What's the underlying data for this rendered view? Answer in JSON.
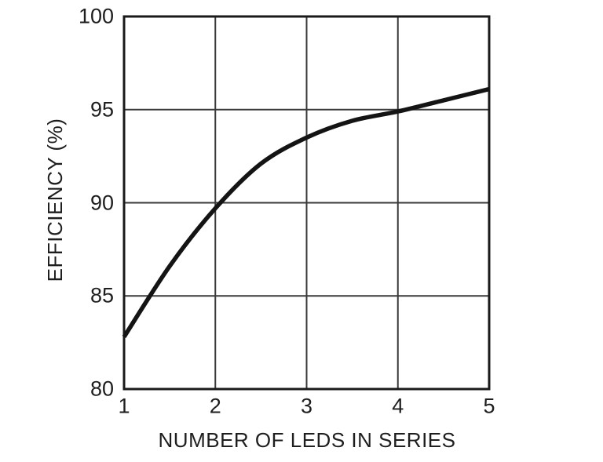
{
  "chart_data": {
    "type": "line",
    "title": "",
    "xlabel": "NUMBER OF LEDS IN SERIES",
    "ylabel": "EFFICIENCY (%)",
    "xlim": [
      1,
      5
    ],
    "ylim": [
      80,
      100
    ],
    "grid": true,
    "legend": false,
    "x_ticks": [
      {
        "label": "1",
        "value": 1
      },
      {
        "label": "2",
        "value": 2
      },
      {
        "label": "3",
        "value": 3
      },
      {
        "label": "4",
        "value": 4
      },
      {
        "label": "5",
        "value": 5
      }
    ],
    "y_ticks": [
      {
        "label": "80",
        "value": 80
      },
      {
        "label": "85",
        "value": 85
      },
      {
        "label": "90",
        "value": 90
      },
      {
        "label": "95",
        "value": 95
      },
      {
        "label": "100",
        "value": 100
      }
    ],
    "series": [
      {
        "x": [
          1,
          1.5,
          2,
          2.5,
          3,
          3.5,
          4,
          4.5,
          5
        ],
        "y": [
          82.8,
          86.6,
          89.7,
          92.1,
          93.5,
          94.4,
          94.9,
          95.5,
          96.1
        ]
      }
    ],
    "colors": {
      "line": "#141414",
      "frame": "#1a1a1a",
      "grid": "#3a3a3a",
      "text": "#1e1e1e",
      "background": "#ffffff"
    },
    "line_width": 5.5
  }
}
